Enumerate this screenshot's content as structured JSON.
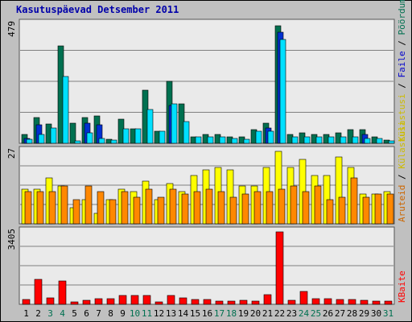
{
  "chart_data": {
    "type": "bar",
    "title": "Kasutuspäevad Detsember 2011",
    "categories": [
      "1",
      "2",
      "3",
      "4",
      "5",
      "6",
      "7",
      "8",
      "9",
      "10",
      "11",
      "12",
      "13",
      "14",
      "15",
      "16",
      "17",
      "18",
      "19",
      "20",
      "21",
      "22",
      "23",
      "24",
      "25",
      "26",
      "27",
      "28",
      "29",
      "30",
      "31"
    ],
    "weekend_days": [
      "3",
      "4",
      "10",
      "11",
      "17",
      "18",
      "24",
      "25",
      "31"
    ],
    "panels": [
      {
        "id": "top",
        "ymax_label": "479",
        "ymax": 479,
        "legend": [
          "Külastusi",
          "Faile",
          "Pöördumisi"
        ],
        "series": [
          {
            "name": "Pöördumisi",
            "color": "#007050",
            "values": [
              34,
              103,
              78,
              392,
              82,
              103,
              110,
              17,
              96,
              58,
              212,
              48,
              250,
              158,
              27,
              34,
              34,
              27,
              27,
              55,
              82,
              474,
              34,
              41,
              34,
              34,
              41,
              55,
              55,
              27,
              14
            ]
          },
          {
            "name": "Külastusi",
            "color": "#0030d0",
            "values": [
              20,
              75,
              0,
              0,
              0,
              82,
              75,
              0,
              0,
              0,
              0,
              0,
              151,
              0,
              0,
              0,
              0,
              0,
              0,
              0,
              62,
              447,
              0,
              0,
              0,
              0,
              0,
              0,
              34,
              0,
              0
            ]
          },
          {
            "name": "Faile",
            "color": "#00e0ff",
            "values": [
              17,
              34,
              62,
              268,
              10,
              41,
              20,
              14,
              58,
              58,
              137,
              48,
              158,
              89,
              27,
              27,
              27,
              20,
              17,
              48,
              48,
              419,
              27,
              27,
              27,
              27,
              27,
              27,
              20,
              20,
              10
            ]
          }
        ]
      },
      {
        "id": "middle",
        "ymax_label": "27",
        "ymax": 27,
        "legend": [
          "Aruteid",
          "Külastusi"
        ],
        "series": [
          {
            "name": "Külastusi",
            "color": "#ffff00",
            "values": [
              13,
              13,
              17,
              14,
              6,
              9,
              4,
              9,
              13,
              12,
              16,
              9,
              15,
              12,
              18,
              20,
              21,
              20,
              14,
              14,
              21,
              27,
              21,
              24,
              18,
              18,
              25,
              21,
              11,
              11,
              12
            ]
          },
          {
            "name": "Aruteid",
            "color": "#ff8800",
            "values": [
              12,
              12,
              12,
              14,
              9,
              14,
              12,
              9,
              12,
              10,
              13,
              10,
              13,
              11,
              12,
              13,
              12,
              10,
              11,
              12,
              12,
              13,
              14,
              12,
              14,
              9,
              10,
              17,
              10,
              11,
              11
            ]
          }
        ]
      },
      {
        "id": "bottom",
        "ymax_label": "3405",
        "ymax": 3405,
        "legend": [
          "KBaite"
        ],
        "series": [
          {
            "name": "KBaite",
            "color": "#ff0000",
            "values": [
              227,
              1158,
              318,
              1090,
              113,
              182,
              272,
              250,
              431,
              409,
              409,
              113,
              431,
              318,
              227,
              227,
              136,
              136,
              182,
              136,
              454,
              3405,
              204,
              613,
              272,
              272,
              227,
              227,
              204,
              136,
              136
            ]
          }
        ]
      }
    ],
    "colors": {
      "background": "#c0c0c0",
      "plot_background": "#eaeaea",
      "gridline": "#808080",
      "title": "#0000aa",
      "weekday_label": "#000000",
      "weekend_label": "#007050",
      "legend_visits": "#ccbb00",
      "legend_files": "#0000cc",
      "legend_hits": "#007050",
      "legend_orange": "#cc6600",
      "legend_red": "#ff0000"
    }
  }
}
